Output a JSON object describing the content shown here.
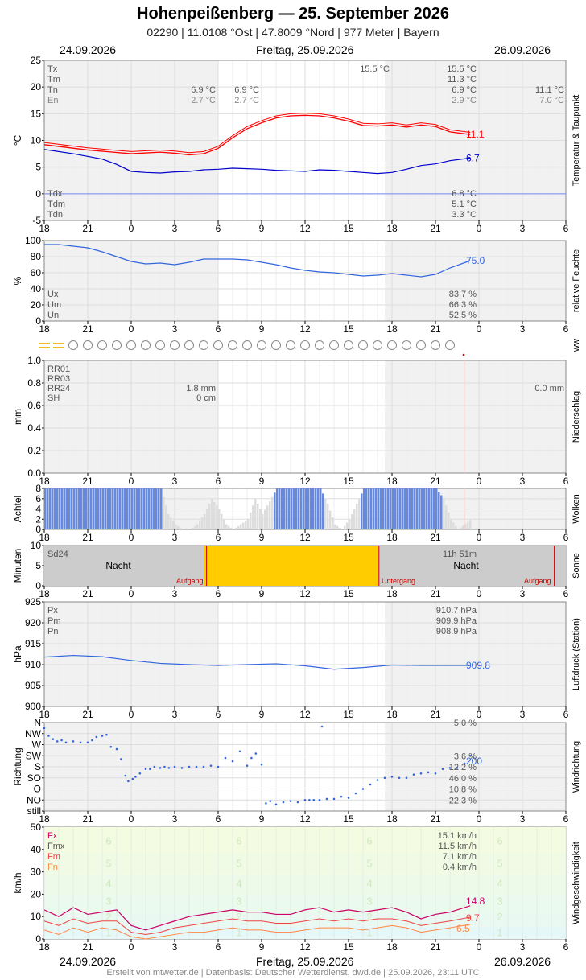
{
  "header": {
    "title": "Hohenpeißenberg  —  25. September 2026",
    "subtitle": "02290  |  11.0108 °Ost  |  47.8009 °Nord  |  977 Meter  |  Bayern",
    "date_left": "24.09.2026",
    "date_center": "Freitag, 25.09.2026",
    "date_right": "26.09.2026"
  },
  "footer": {
    "credit": "Erstellt von mtwetter.de | Datenbasis: Deutscher Wetterdienst, dwd.de | 25.09.2026, 23:11 UTC"
  },
  "x_axis": {
    "ticks": [
      "18",
      "21",
      "0",
      "3",
      "6",
      "9",
      "12",
      "15",
      "18",
      "21",
      "0",
      "3",
      "6"
    ]
  },
  "colors": {
    "temperature": "#ff0000",
    "dewpoint": "#0000cc",
    "humidity": "#3366dd",
    "pressure": "#3366dd",
    "wind_dir": "#3366dd",
    "gust": "#cc0066",
    "wind_mean": "#ee4444",
    "wind_min": "#ff8844",
    "clouds": "#6688dd",
    "sun": "#ffcc00",
    "night": "#cccccc"
  },
  "chart_data": [
    {
      "name": "temperature",
      "type": "line",
      "ylabel": "°C",
      "side_label": "Temperatur & Taupunkt",
      "yticks": [
        "25",
        "20",
        "15",
        "10",
        "5",
        "0",
        "-5"
      ],
      "ylim": [
        -5,
        25
      ],
      "x_unit": "hours since 24.09.2026 18:00",
      "series": [
        {
          "key": "temp",
          "values_x": [
            0,
            3,
            6,
            8,
            9,
            10,
            11,
            12,
            13,
            14,
            15,
            16,
            17,
            18,
            19,
            20,
            21,
            22,
            23,
            24,
            25,
            26,
            27,
            28,
            29.4
          ],
          "values_y": [
            9.2,
            8.2,
            7.5,
            7.8,
            7.6,
            7.3,
            7.5,
            8.5,
            10.5,
            12.2,
            13.3,
            14.2,
            14.6,
            14.7,
            14.6,
            14.2,
            13.6,
            12.8,
            12.7,
            12.9,
            12.5,
            12.9,
            12.6,
            11.6,
            11.1
          ]
        },
        {
          "key": "dew",
          "values_x": [
            0,
            2,
            4,
            5,
            6,
            7,
            8,
            9,
            10,
            11,
            12,
            13,
            14,
            15,
            16,
            17,
            18,
            19,
            20,
            21,
            22,
            23,
            24,
            25,
            26,
            27,
            28,
            29.4
          ],
          "values_y": [
            8.3,
            7.5,
            6.5,
            5.5,
            4.2,
            4.0,
            3.9,
            4.1,
            4.2,
            4.5,
            4.6,
            4.8,
            4.7,
            4.6,
            4.4,
            4.3,
            4.2,
            4.5,
            4.4,
            4.2,
            4.0,
            3.8,
            4.0,
            4.6,
            5.3,
            5.6,
            6.2,
            6.7
          ]
        }
      ],
      "last_values": {
        "temp": "11.1",
        "dew": "6.7"
      },
      "stats_top": [
        {
          "label": "Tx",
          "c1": "",
          "c2": "",
          "c3": "15.5 °C",
          "c4": "15.5 °C",
          "c5": ""
        },
        {
          "label": "Tm",
          "c1": "",
          "c2": "",
          "c3": "",
          "c4": "11.3 °C",
          "c5": ""
        },
        {
          "label": "Tn",
          "c1": "6.9 °C",
          "c2": "6.9 °C",
          "c3": "",
          "c4": "6.9 °C",
          "c5": "11.1 °C"
        },
        {
          "label": "En",
          "c1": "2.7 °C",
          "c2": "2.7 °C",
          "c3": "",
          "c4": "2.9 °C",
          "c5": "7.0 °C"
        }
      ],
      "stats_bottom": [
        {
          "label": "Tdx",
          "value": "6.8 °C"
        },
        {
          "label": "Tdm",
          "value": "5.1 °C"
        },
        {
          "label": "Tdn",
          "value": "3.3 °C"
        }
      ]
    },
    {
      "name": "humidity",
      "type": "line",
      "ylabel": "%",
      "side_label": "relative Feuchte",
      "yticks": [
        "100",
        "80",
        "60",
        "40",
        "20",
        "0"
      ],
      "ylim": [
        0,
        100
      ],
      "x_unit": "hours since 24.09.2026 18:00",
      "series": [
        {
          "key": "rh",
          "values_x": [
            0,
            1,
            2,
            3,
            4,
            5,
            6,
            7,
            8,
            9,
            10,
            11,
            12,
            13,
            14,
            15,
            16,
            17,
            18,
            19,
            20,
            21,
            22,
            23,
            24,
            25,
            26,
            27,
            28,
            29.4
          ],
          "values_y": [
            95,
            95,
            93,
            91,
            86,
            80,
            74,
            71,
            72,
            70,
            73,
            77,
            77,
            77,
            76,
            73,
            70,
            66,
            63,
            61,
            60,
            58,
            56,
            57,
            59,
            57,
            55,
            58,
            66,
            75
          ]
        }
      ],
      "last_value": "75.0",
      "stats": [
        {
          "label": "Ux",
          "value": "83.7 %"
        },
        {
          "label": "Um",
          "value": "66.3 %"
        },
        {
          "label": "Un",
          "value": "52.5 %"
        }
      ]
    },
    {
      "name": "weather_symbols",
      "type": "table",
      "side_label": "ww",
      "first_symbol": "fog",
      "circle_count": 27
    },
    {
      "name": "precipitation",
      "type": "bar",
      "ylabel": "mm",
      "side_label": "Niederschlag",
      "yticks": [
        "1.0",
        "0.8",
        "0.6",
        "0.4",
        "0.2",
        "0.0"
      ],
      "ylim": [
        0,
        1
      ],
      "values": [],
      "stats": [
        {
          "label": "RR01",
          "c1": "",
          "c2": ""
        },
        {
          "label": "RR03",
          "c1": "",
          "c2": ""
        },
        {
          "label": "RR24",
          "c1": "1.8 mm",
          "c2": "0.0 mm"
        },
        {
          "label": "SH",
          "c1": "0 cm",
          "c2": ""
        }
      ]
    },
    {
      "name": "clouds",
      "type": "bar",
      "ylabel": "Achtel",
      "side_label": "Wolken",
      "yticks": [
        "8",
        "6",
        "4",
        "2",
        "0"
      ],
      "ylim": [
        0,
        8
      ],
      "x_unit": "hours since 24.09.2026 18:00",
      "cover_x": [
        0,
        1,
        2,
        3,
        4,
        5,
        6,
        7,
        8,
        8.5,
        9,
        9.5,
        10,
        10.5,
        11,
        11.5,
        12,
        12.5,
        13,
        13.5,
        14,
        14.5,
        15,
        16,
        17,
        18,
        19,
        19.5,
        20,
        20.5,
        21,
        22,
        23,
        24,
        25,
        26,
        27,
        27.5,
        28,
        28.5,
        29.4
      ],
      "cover_y": [
        8,
        8,
        8,
        8,
        8,
        8,
        8,
        8,
        8,
        3,
        1,
        0,
        0,
        1,
        3,
        6,
        4,
        1,
        0,
        1,
        2,
        6,
        3,
        8,
        8,
        8,
        8,
        5,
        1,
        0,
        2,
        8,
        8,
        8,
        8,
        8,
        8,
        6,
        2,
        0,
        2
      ]
    },
    {
      "name": "sunshine",
      "type": "bar",
      "ylabel": "Minuten",
      "side_label": "Sonne",
      "yticks": [
        "10",
        "5",
        "0"
      ],
      "ylim": [
        0,
        10
      ],
      "sunshine_hours": [
        11,
        23
      ],
      "labels": {
        "sd24": "Sd24",
        "sd24_value": "11h 51m",
        "night": "Nacht",
        "sunrise": "Aufgang",
        "sunset": "Untergang"
      }
    },
    {
      "name": "pressure",
      "type": "line",
      "ylabel": "hPa",
      "side_label": "Luftdruck (Station)",
      "yticks": [
        "925",
        "920",
        "915",
        "910",
        "905",
        "900"
      ],
      "ylim": [
        900,
        925
      ],
      "x_unit": "hours since 24.09.2026 18:00",
      "series": [
        {
          "key": "p",
          "values_x": [
            0,
            2,
            4,
            6,
            8,
            10,
            12,
            14,
            16,
            18,
            20,
            22,
            24,
            26,
            28,
            29.4
          ],
          "values_y": [
            911.8,
            912.2,
            911.9,
            911.0,
            910.3,
            910.0,
            909.8,
            910.0,
            910.2,
            909.7,
            908.9,
            909.3,
            909.9,
            909.8,
            909.8,
            909.8
          ]
        }
      ],
      "last_value": "909.8",
      "stats": [
        {
          "label": "Px",
          "value": "910.7 hPa"
        },
        {
          "label": "Pm",
          "value": "909.9 hPa"
        },
        {
          "label": "Pn",
          "value": "908.9 hPa"
        }
      ]
    },
    {
      "name": "wind_direction",
      "type": "scatter",
      "ylabel": "Richtung",
      "side_label": "Windrichtung",
      "yticks": [
        "N",
        "NW",
        "W",
        "SW",
        "S",
        "SO",
        "O",
        "NO",
        "still"
      ],
      "ylim": [
        0,
        8
      ],
      "x_unit": "hours since 24.09.2026 18:00",
      "points_x": [
        0,
        0.3,
        0.6,
        0.9,
        1.2,
        1.5,
        2,
        2.5,
        3,
        3.3,
        3.6,
        4,
        4.3,
        4.6,
        5,
        5.3,
        5.6,
        5.8,
        6.1,
        6.3,
        6.6,
        7,
        7.3,
        7.6,
        8,
        8.3,
        8.6,
        9,
        9.5,
        10,
        10.5,
        11,
        11.5,
        12,
        12.5,
        13,
        13.5,
        14,
        14.3,
        14.6,
        15,
        15.3,
        15.6,
        16,
        16.5,
        17,
        17.5,
        18,
        18.3,
        18.6,
        19,
        19.5,
        20,
        20.5,
        21,
        21.5,
        22,
        22.5,
        23,
        23.5,
        24,
        24.5,
        25,
        25.5,
        26,
        26.5,
        27,
        27.5,
        28,
        28.5,
        29,
        29.4
      ],
      "points_y": [
        7.5,
        6.8,
        6.5,
        6.3,
        6.4,
        6.2,
        6.3,
        6.2,
        6.2,
        6.4,
        6.7,
        6.8,
        6.9,
        5.8,
        5.6,
        4.7,
        3.2,
        2.7,
        2.9,
        3.1,
        3.4,
        3.8,
        3.8,
        4.0,
        3.9,
        4.0,
        3.9,
        4.0,
        3.9,
        4.0,
        4.0,
        4.0,
        4.1,
        4.0,
        4.8,
        4.5,
        5.4,
        4.1,
        4.8,
        5.2,
        4.2,
        0.7,
        0.9,
        0.6,
        0.8,
        0.9,
        0.8,
        1.0,
        1.0,
        1.0,
        1.0,
        1.1,
        1.1,
        1.3,
        1.2,
        1.6,
        2.0,
        2.4,
        2.8,
        3.0,
        3.1,
        3.0,
        3.0,
        3.3,
        3.4,
        3.5,
        3.4,
        3.8,
        3.9,
        3.9,
        4.3,
        5.0
      ],
      "last_value": "200",
      "stats": [
        {
          "label": "N",
          "value": "5.0 %"
        },
        {
          "label": "NW",
          "value": ""
        },
        {
          "label": "W",
          "value": ""
        },
        {
          "label": "SW",
          "value": "3.6 %"
        },
        {
          "label": "S",
          "value": "12.2 %"
        },
        {
          "label": "SO",
          "value": "46.0 %"
        },
        {
          "label": "O",
          "value": "10.8 %"
        },
        {
          "label": "NO",
          "value": "22.3 %"
        },
        {
          "label": "still",
          "value": ""
        }
      ]
    },
    {
      "name": "wind_speed",
      "type": "line",
      "ylabel": "km/h",
      "side_label": "Windgeschwindigkeit",
      "yticks": [
        "50",
        "40",
        "30",
        "20",
        "10",
        "0"
      ],
      "ylim": [
        0,
        50
      ],
      "beaufort": [
        "6",
        "5",
        "4",
        "3",
        "2",
        "1"
      ],
      "x_unit": "hours since 24.09.2026 18:00",
      "series": [
        {
          "key": "gust",
          "values_x": [
            0,
            1,
            2,
            3,
            4,
            5,
            6,
            7,
            8,
            9,
            10,
            11,
            12,
            13,
            14,
            15,
            16,
            17,
            18,
            19,
            20,
            21,
            22,
            23,
            24,
            25,
            26,
            27,
            28,
            29.4
          ],
          "values_y": [
            13,
            10,
            14,
            11,
            12,
            13,
            6,
            4,
            6,
            8,
            10,
            11,
            12,
            13,
            12,
            12,
            11,
            11,
            13,
            14,
            12,
            13,
            12,
            13,
            14,
            12,
            9,
            11,
            12,
            14.8
          ]
        },
        {
          "key": "mean",
          "values_x": [
            0,
            1,
            2,
            3,
            4,
            5,
            6,
            7,
            8,
            9,
            10,
            11,
            12,
            13,
            14,
            15,
            16,
            17,
            18,
            19,
            20,
            21,
            22,
            23,
            24,
            25,
            26,
            27,
            28,
            29.4
          ],
          "values_y": [
            8,
            6,
            9,
            7,
            8,
            8,
            3,
            2,
            3,
            5,
            6,
            7,
            8,
            9,
            8,
            8,
            7,
            7,
            8,
            9,
            8,
            9,
            8,
            9,
            9,
            8,
            6,
            7,
            8,
            9.7
          ]
        },
        {
          "key": "min",
          "values_x": [
            0,
            1,
            2,
            3,
            4,
            5,
            6,
            7,
            8,
            9,
            10,
            11,
            12,
            13,
            14,
            15,
            16,
            17,
            18,
            19,
            20,
            21,
            22,
            23,
            24,
            25,
            26,
            27,
            28,
            29.4
          ],
          "values_y": [
            4,
            2,
            5,
            3,
            5,
            4,
            1,
            0,
            1,
            2,
            3,
            3,
            4,
            5,
            4,
            4,
            3,
            3,
            4,
            5,
            5,
            5,
            4,
            5,
            6,
            5,
            3,
            4,
            5,
            6.5
          ]
        }
      ],
      "last_values": {
        "gust": "14.8",
        "mean": "9.7",
        "min": "6.5"
      },
      "stats": [
        {
          "label": "Fx",
          "value": "15.1 km/h"
        },
        {
          "label": "Fmx",
          "value": "11.5 km/h"
        },
        {
          "label": "Fm",
          "value": "7.1 km/h"
        },
        {
          "label": "Fn",
          "value": "0.4 km/h"
        }
      ]
    }
  ]
}
